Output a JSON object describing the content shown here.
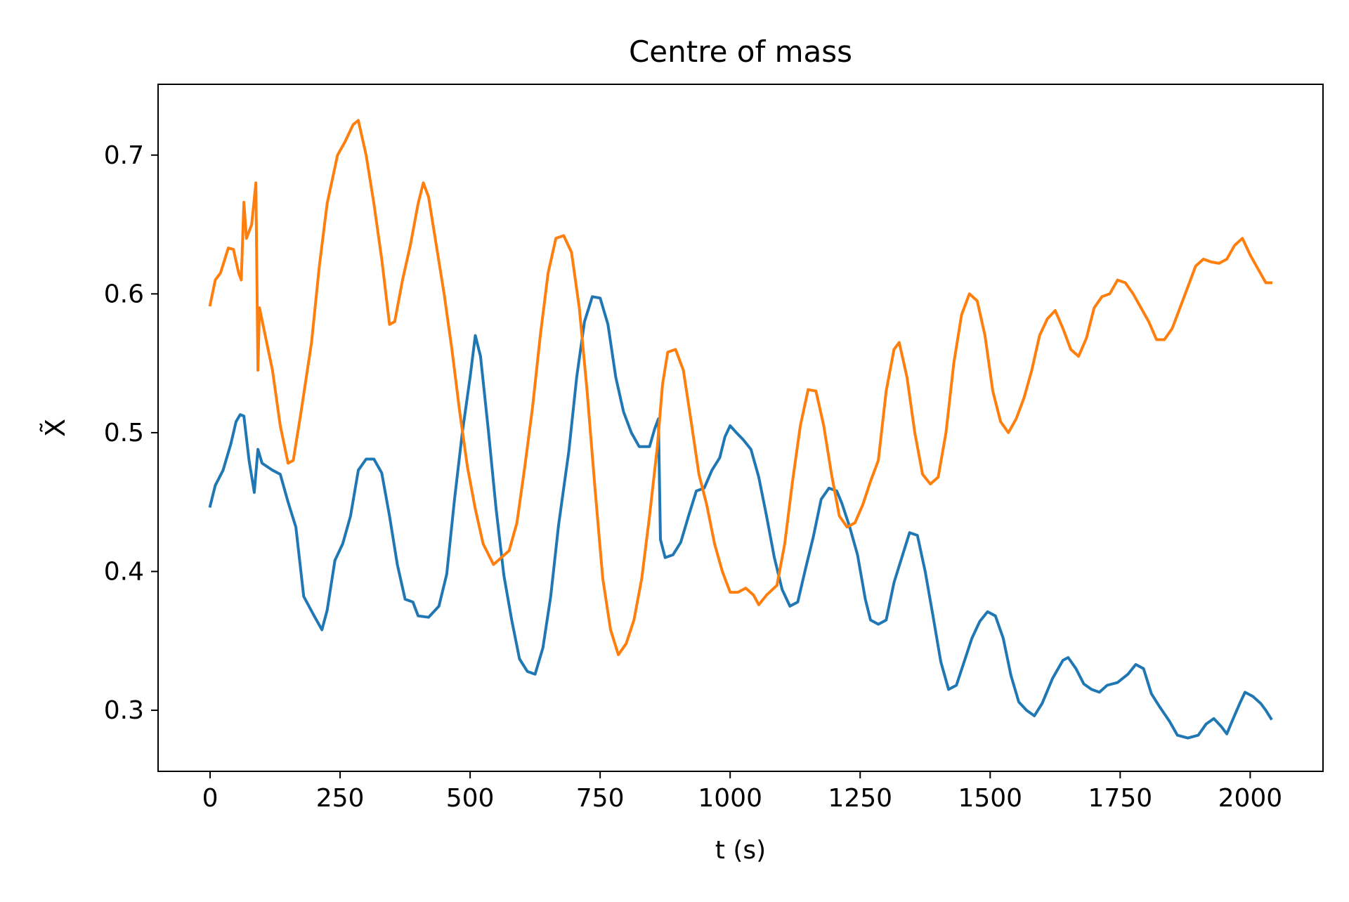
{
  "chart_data": {
    "type": "line",
    "title": "Centre of mass",
    "xlabel": "t (s)",
    "ylabel": "X̃",
    "xlim": [
      -100,
      2140
    ],
    "ylim": [
      0.256,
      0.751
    ],
    "grid": false,
    "x_ticks": [
      0,
      250,
      500,
      750,
      1000,
      1250,
      1500,
      1750,
      2000
    ],
    "x_tick_labels": [
      "0",
      "250",
      "500",
      "750",
      "1000",
      "1250",
      "1500",
      "1750",
      "2000"
    ],
    "y_ticks": [
      0.3,
      0.4,
      0.5,
      0.6,
      0.7
    ],
    "y_tick_labels": [
      "0.3",
      "0.4",
      "0.5",
      "0.6",
      "0.7"
    ],
    "series": [
      {
        "color": "#1f77b4",
        "points": [
          [
            0,
            0.447
          ],
          [
            10,
            0.462
          ],
          [
            25,
            0.473
          ],
          [
            40,
            0.492
          ],
          [
            50,
            0.508
          ],
          [
            58,
            0.513
          ],
          [
            65,
            0.512
          ],
          [
            75,
            0.48
          ],
          [
            85,
            0.457
          ],
          [
            92,
            0.488
          ],
          [
            100,
            0.478
          ],
          [
            120,
            0.473
          ],
          [
            135,
            0.47
          ],
          [
            150,
            0.45
          ],
          [
            165,
            0.432
          ],
          [
            180,
            0.382
          ],
          [
            200,
            0.368
          ],
          [
            215,
            0.358
          ],
          [
            225,
            0.372
          ],
          [
            240,
            0.408
          ],
          [
            255,
            0.42
          ],
          [
            270,
            0.44
          ],
          [
            285,
            0.473
          ],
          [
            300,
            0.481
          ],
          [
            315,
            0.481
          ],
          [
            330,
            0.471
          ],
          [
            345,
            0.44
          ],
          [
            360,
            0.405
          ],
          [
            375,
            0.38
          ],
          [
            390,
            0.378
          ],
          [
            400,
            0.368
          ],
          [
            420,
            0.367
          ],
          [
            440,
            0.375
          ],
          [
            455,
            0.398
          ],
          [
            470,
            0.452
          ],
          [
            485,
            0.5
          ],
          [
            500,
            0.54
          ],
          [
            510,
            0.57
          ],
          [
            520,
            0.555
          ],
          [
            535,
            0.502
          ],
          [
            550,
            0.445
          ],
          [
            565,
            0.397
          ],
          [
            580,
            0.365
          ],
          [
            595,
            0.337
          ],
          [
            610,
            0.328
          ],
          [
            625,
            0.326
          ],
          [
            640,
            0.345
          ],
          [
            655,
            0.382
          ],
          [
            670,
            0.433
          ],
          [
            690,
            0.487
          ],
          [
            705,
            0.54
          ],
          [
            720,
            0.58
          ],
          [
            735,
            0.598
          ],
          [
            750,
            0.597
          ],
          [
            765,
            0.578
          ],
          [
            780,
            0.54
          ],
          [
            795,
            0.515
          ],
          [
            810,
            0.5
          ],
          [
            825,
            0.49
          ],
          [
            845,
            0.49
          ],
          [
            855,
            0.503
          ],
          [
            862,
            0.51
          ],
          [
            866,
            0.423
          ],
          [
            875,
            0.41
          ],
          [
            890,
            0.412
          ],
          [
            905,
            0.421
          ],
          [
            920,
            0.44
          ],
          [
            935,
            0.458
          ],
          [
            950,
            0.46
          ],
          [
            965,
            0.473
          ],
          [
            980,
            0.482
          ],
          [
            990,
            0.497
          ],
          [
            1000,
            0.505
          ],
          [
            1012,
            0.5
          ],
          [
            1025,
            0.495
          ],
          [
            1040,
            0.488
          ],
          [
            1055,
            0.468
          ],
          [
            1070,
            0.44
          ],
          [
            1085,
            0.41
          ],
          [
            1100,
            0.387
          ],
          [
            1115,
            0.375
          ],
          [
            1130,
            0.378
          ],
          [
            1145,
            0.402
          ],
          [
            1160,
            0.425
          ],
          [
            1175,
            0.452
          ],
          [
            1190,
            0.46
          ],
          [
            1205,
            0.458
          ],
          [
            1215,
            0.449
          ],
          [
            1230,
            0.432
          ],
          [
            1245,
            0.412
          ],
          [
            1260,
            0.38
          ],
          [
            1270,
            0.365
          ],
          [
            1285,
            0.362
          ],
          [
            1300,
            0.365
          ],
          [
            1315,
            0.392
          ],
          [
            1330,
            0.41
          ],
          [
            1345,
            0.428
          ],
          [
            1360,
            0.426
          ],
          [
            1375,
            0.4
          ],
          [
            1390,
            0.368
          ],
          [
            1405,
            0.335
          ],
          [
            1420,
            0.315
          ],
          [
            1435,
            0.318
          ],
          [
            1450,
            0.335
          ],
          [
            1465,
            0.352
          ],
          [
            1480,
            0.364
          ],
          [
            1495,
            0.371
          ],
          [
            1510,
            0.368
          ],
          [
            1525,
            0.352
          ],
          [
            1540,
            0.325
          ],
          [
            1555,
            0.306
          ],
          [
            1570,
            0.3
          ],
          [
            1585,
            0.296
          ],
          [
            1600,
            0.305
          ],
          [
            1620,
            0.323
          ],
          [
            1640,
            0.336
          ],
          [
            1650,
            0.338
          ],
          [
            1665,
            0.33
          ],
          [
            1680,
            0.319
          ],
          [
            1695,
            0.315
          ],
          [
            1710,
            0.313
          ],
          [
            1725,
            0.318
          ],
          [
            1745,
            0.32
          ],
          [
            1765,
            0.326
          ],
          [
            1780,
            0.333
          ],
          [
            1795,
            0.33
          ],
          [
            1810,
            0.312
          ],
          [
            1825,
            0.303
          ],
          [
            1845,
            0.292
          ],
          [
            1860,
            0.282
          ],
          [
            1880,
            0.28
          ],
          [
            1900,
            0.282
          ],
          [
            1915,
            0.29
          ],
          [
            1930,
            0.294
          ],
          [
            1945,
            0.288
          ],
          [
            1955,
            0.283
          ],
          [
            1965,
            0.292
          ],
          [
            1980,
            0.305
          ],
          [
            1990,
            0.313
          ],
          [
            2005,
            0.31
          ],
          [
            2020,
            0.305
          ],
          [
            2030,
            0.3
          ],
          [
            2040,
            0.294
          ]
        ]
      },
      {
        "color": "#ff7f0e",
        "points": [
          [
            0,
            0.592
          ],
          [
            10,
            0.61
          ],
          [
            20,
            0.615
          ],
          [
            35,
            0.633
          ],
          [
            45,
            0.632
          ],
          [
            55,
            0.615
          ],
          [
            60,
            0.61
          ],
          [
            65,
            0.666
          ],
          [
            70,
            0.64
          ],
          [
            80,
            0.65
          ],
          [
            88,
            0.68
          ],
          [
            92,
            0.545
          ],
          [
            95,
            0.59
          ],
          [
            105,
            0.572
          ],
          [
            120,
            0.545
          ],
          [
            135,
            0.505
          ],
          [
            150,
            0.478
          ],
          [
            160,
            0.48
          ],
          [
            175,
            0.515
          ],
          [
            195,
            0.565
          ],
          [
            210,
            0.62
          ],
          [
            225,
            0.665
          ],
          [
            245,
            0.7
          ],
          [
            260,
            0.71
          ],
          [
            275,
            0.722
          ],
          [
            285,
            0.725
          ],
          [
            300,
            0.7
          ],
          [
            315,
            0.665
          ],
          [
            330,
            0.625
          ],
          [
            345,
            0.578
          ],
          [
            355,
            0.58
          ],
          [
            370,
            0.61
          ],
          [
            385,
            0.635
          ],
          [
            400,
            0.665
          ],
          [
            410,
            0.68
          ],
          [
            420,
            0.67
          ],
          [
            435,
            0.635
          ],
          [
            450,
            0.6
          ],
          [
            465,
            0.56
          ],
          [
            480,
            0.515
          ],
          [
            495,
            0.475
          ],
          [
            510,
            0.445
          ],
          [
            525,
            0.42
          ],
          [
            545,
            0.405
          ],
          [
            560,
            0.41
          ],
          [
            575,
            0.415
          ],
          [
            590,
            0.435
          ],
          [
            605,
            0.475
          ],
          [
            620,
            0.518
          ],
          [
            635,
            0.57
          ],
          [
            650,
            0.615
          ],
          [
            665,
            0.64
          ],
          [
            680,
            0.642
          ],
          [
            695,
            0.63
          ],
          [
            710,
            0.59
          ],
          [
            725,
            0.53
          ],
          [
            740,
            0.46
          ],
          [
            755,
            0.395
          ],
          [
            770,
            0.358
          ],
          [
            785,
            0.34
          ],
          [
            800,
            0.348
          ],
          [
            815,
            0.365
          ],
          [
            830,
            0.395
          ],
          [
            845,
            0.44
          ],
          [
            860,
            0.49
          ],
          [
            870,
            0.535
          ],
          [
            880,
            0.558
          ],
          [
            895,
            0.56
          ],
          [
            910,
            0.545
          ],
          [
            925,
            0.508
          ],
          [
            940,
            0.47
          ],
          [
            955,
            0.448
          ],
          [
            970,
            0.42
          ],
          [
            985,
            0.4
          ],
          [
            1000,
            0.385
          ],
          [
            1015,
            0.385
          ],
          [
            1030,
            0.388
          ],
          [
            1045,
            0.383
          ],
          [
            1055,
            0.376
          ],
          [
            1070,
            0.383
          ],
          [
            1090,
            0.39
          ],
          [
            1105,
            0.42
          ],
          [
            1120,
            0.465
          ],
          [
            1135,
            0.505
          ],
          [
            1150,
            0.531
          ],
          [
            1165,
            0.53
          ],
          [
            1180,
            0.505
          ],
          [
            1195,
            0.47
          ],
          [
            1210,
            0.44
          ],
          [
            1225,
            0.432
          ],
          [
            1240,
            0.435
          ],
          [
            1255,
            0.448
          ],
          [
            1270,
            0.465
          ],
          [
            1285,
            0.48
          ],
          [
            1300,
            0.53
          ],
          [
            1315,
            0.56
          ],
          [
            1325,
            0.565
          ],
          [
            1340,
            0.54
          ],
          [
            1355,
            0.5
          ],
          [
            1370,
            0.47
          ],
          [
            1385,
            0.463
          ],
          [
            1400,
            0.468
          ],
          [
            1415,
            0.5
          ],
          [
            1430,
            0.55
          ],
          [
            1445,
            0.585
          ],
          [
            1460,
            0.6
          ],
          [
            1475,
            0.595
          ],
          [
            1490,
            0.57
          ],
          [
            1505,
            0.53
          ],
          [
            1520,
            0.508
          ],
          [
            1535,
            0.5
          ],
          [
            1550,
            0.51
          ],
          [
            1565,
            0.525
          ],
          [
            1580,
            0.545
          ],
          [
            1595,
            0.57
          ],
          [
            1610,
            0.582
          ],
          [
            1625,
            0.588
          ],
          [
            1640,
            0.575
          ],
          [
            1655,
            0.56
          ],
          [
            1670,
            0.555
          ],
          [
            1685,
            0.568
          ],
          [
            1700,
            0.59
          ],
          [
            1715,
            0.598
          ],
          [
            1730,
            0.6
          ],
          [
            1745,
            0.61
          ],
          [
            1760,
            0.608
          ],
          [
            1775,
            0.6
          ],
          [
            1790,
            0.59
          ],
          [
            1805,
            0.58
          ],
          [
            1820,
            0.567
          ],
          [
            1835,
            0.567
          ],
          [
            1850,
            0.575
          ],
          [
            1865,
            0.59
          ],
          [
            1880,
            0.605
          ],
          [
            1895,
            0.62
          ],
          [
            1910,
            0.625
          ],
          [
            1925,
            0.623
          ],
          [
            1940,
            0.622
          ],
          [
            1955,
            0.625
          ],
          [
            1970,
            0.635
          ],
          [
            1985,
            0.64
          ],
          [
            2000,
            0.628
          ],
          [
            2015,
            0.618
          ],
          [
            2030,
            0.608
          ],
          [
            2040,
            0.608
          ]
        ]
      }
    ]
  }
}
